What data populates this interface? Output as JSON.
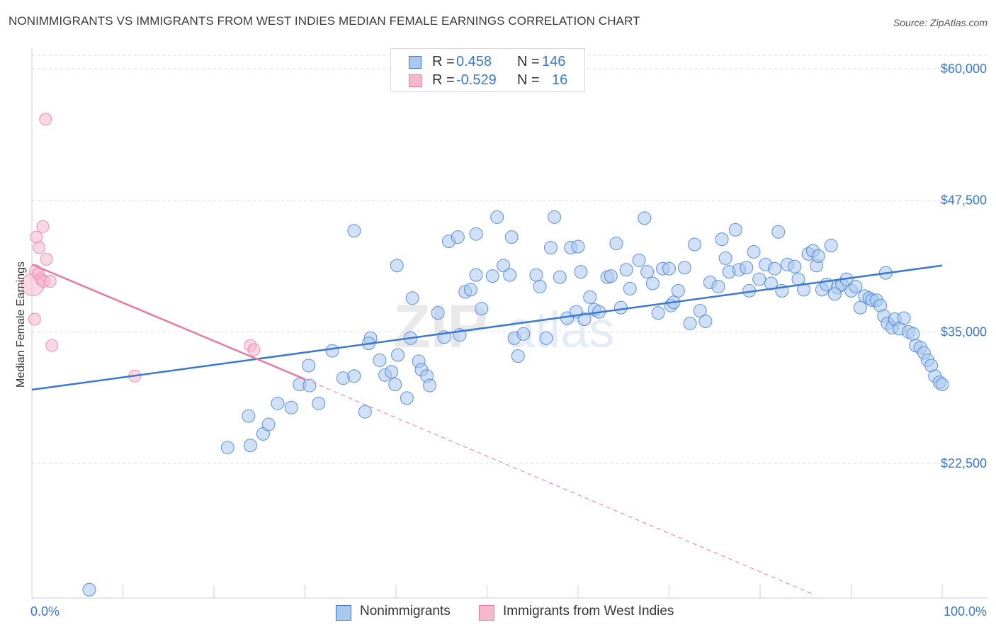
{
  "title": "NONIMMIGRANTS VS IMMIGRANTS FROM WEST INDIES MEDIAN FEMALE EARNINGS CORRELATION CHART",
  "source": "Source: ZipAtlas.com",
  "colors": {
    "blue": "#3b78d0",
    "blue_fill": "#a9c8f0",
    "pink": "#e87aa0",
    "pink_fill": "#f6b8cc",
    "grid": "#dddddd"
  },
  "legend_top": {
    "row1": {
      "r_label": "R =",
      "r_value": "0.458",
      "n_label": "N =",
      "n_value": "146"
    },
    "row2": {
      "r_label": "R =",
      "r_value": "-0.529",
      "n_label": "N =",
      "n_value": "16"
    }
  },
  "legend_bottom": {
    "item1": "Nonimmigrants",
    "item2": "Immigrants from West Indies"
  },
  "chart_data": {
    "type": "scatter",
    "title": "NONIMMIGRANTS VS IMMIGRANTS FROM WEST INDIES MEDIAN FEMALE EARNINGS CORRELATION CHART",
    "ylabel": "Median Female Earnings",
    "xlabel": "",
    "xlim": [
      0,
      100
    ],
    "ylim": [
      10000,
      62000
    ],
    "x_tick_labels": [
      "0.0%",
      "100.0%"
    ],
    "y_ticks": [
      22500,
      35000,
      47500,
      60000
    ],
    "y_tick_labels": [
      "$22,500",
      "$35,000",
      "$47,500",
      "$60,000"
    ],
    "grid": "horizontal dashed",
    "watermark": "ZIPatlas",
    "series": [
      {
        "name": "Nonimmigrants",
        "color": "#3b78d0",
        "trend": {
          "x": [
            0,
            100
          ],
          "y": [
            29500,
            41300
          ]
        },
        "points": [
          [
            6.3,
            10500
          ],
          [
            21.5,
            24000
          ],
          [
            24.0,
            24200
          ],
          [
            23.8,
            27000
          ],
          [
            25.4,
            25300
          ],
          [
            26.0,
            26200
          ],
          [
            27.0,
            28200
          ],
          [
            28.5,
            27800
          ],
          [
            29.4,
            30000
          ],
          [
            30.4,
            31800
          ],
          [
            30.5,
            29900
          ],
          [
            31.5,
            28200
          ],
          [
            33.0,
            33200
          ],
          [
            34.2,
            30600
          ],
          [
            35.4,
            30800
          ],
          [
            35.4,
            44600
          ],
          [
            36.6,
            27400
          ],
          [
            37.2,
            34400
          ],
          [
            37.0,
            33900
          ],
          [
            38.2,
            32300
          ],
          [
            38.8,
            30900
          ],
          [
            39.5,
            31200
          ],
          [
            39.9,
            30000
          ],
          [
            40.1,
            41300
          ],
          [
            40.2,
            32800
          ],
          [
            41.2,
            28700
          ],
          [
            41.6,
            34400
          ],
          [
            41.8,
            38200
          ],
          [
            42.5,
            32200
          ],
          [
            42.8,
            31400
          ],
          [
            43.4,
            30800
          ],
          [
            43.7,
            29900
          ],
          [
            44.6,
            36800
          ],
          [
            45.3,
            34500
          ],
          [
            45.8,
            43600
          ],
          [
            46.8,
            44000
          ],
          [
            47.0,
            34700
          ],
          [
            47.6,
            38800
          ],
          [
            48.2,
            39000
          ],
          [
            48.8,
            44300
          ],
          [
            48.8,
            40400
          ],
          [
            49.4,
            37200
          ],
          [
            50.6,
            40300
          ],
          [
            51.1,
            45900
          ],
          [
            51.8,
            41300
          ],
          [
            52.5,
            40400
          ],
          [
            52.7,
            44000
          ],
          [
            53.0,
            34400
          ],
          [
            53.4,
            32700
          ],
          [
            54.0,
            34800
          ],
          [
            55.4,
            40400
          ],
          [
            55.8,
            39300
          ],
          [
            56.5,
            34400
          ],
          [
            57.0,
            43000
          ],
          [
            57.4,
            45900
          ],
          [
            58.0,
            40200
          ],
          [
            58.8,
            36300
          ],
          [
            59.2,
            43000
          ],
          [
            59.8,
            36900
          ],
          [
            60.0,
            43100
          ],
          [
            60.3,
            40700
          ],
          [
            60.7,
            36200
          ],
          [
            61.3,
            38300
          ],
          [
            61.8,
            37100
          ],
          [
            62.3,
            36900
          ],
          [
            63.2,
            40200
          ],
          [
            63.6,
            40300
          ],
          [
            64.2,
            43400
          ],
          [
            64.7,
            37300
          ],
          [
            65.3,
            40900
          ],
          [
            65.7,
            39100
          ],
          [
            66.7,
            41800
          ],
          [
            67.3,
            45800
          ],
          [
            67.6,
            40700
          ],
          [
            68.2,
            39600
          ],
          [
            68.8,
            36800
          ],
          [
            69.3,
            41000
          ],
          [
            70.0,
            41000
          ],
          [
            70.2,
            37500
          ],
          [
            70.5,
            37800
          ],
          [
            71.0,
            38900
          ],
          [
            71.7,
            41100
          ],
          [
            72.3,
            35800
          ],
          [
            72.8,
            43300
          ],
          [
            73.4,
            37000
          ],
          [
            74.0,
            36000
          ],
          [
            74.5,
            39700
          ],
          [
            75.4,
            39300
          ],
          [
            75.8,
            43800
          ],
          [
            76.2,
            42000
          ],
          [
            76.6,
            40700
          ],
          [
            77.3,
            44700
          ],
          [
            77.7,
            40900
          ],
          [
            78.5,
            41100
          ],
          [
            78.8,
            38900
          ],
          [
            79.3,
            42600
          ],
          [
            79.9,
            40000
          ],
          [
            80.6,
            41400
          ],
          [
            81.2,
            39600
          ],
          [
            81.6,
            41000
          ],
          [
            82.0,
            44500
          ],
          [
            82.4,
            38900
          ],
          [
            83.0,
            41400
          ],
          [
            83.8,
            41200
          ],
          [
            84.2,
            40000
          ],
          [
            84.8,
            39000
          ],
          [
            85.3,
            42400
          ],
          [
            85.8,
            42700
          ],
          [
            86.2,
            41300
          ],
          [
            86.8,
            39000
          ],
          [
            87.3,
            39500
          ],
          [
            87.8,
            43200
          ],
          [
            88.5,
            39200
          ],
          [
            89.0,
            39500
          ],
          [
            89.5,
            40000
          ],
          [
            90.0,
            38900
          ],
          [
            90.5,
            39300
          ],
          [
            91.0,
            37300
          ],
          [
            91.5,
            38400
          ],
          [
            92.0,
            38200
          ],
          [
            92.3,
            38000
          ],
          [
            92.8,
            38000
          ],
          [
            93.2,
            37500
          ],
          [
            93.6,
            36500
          ],
          [
            94.0,
            35800
          ],
          [
            94.5,
            35400
          ],
          [
            94.8,
            36200
          ],
          [
            95.3,
            35300
          ],
          [
            95.8,
            36300
          ],
          [
            96.3,
            35000
          ],
          [
            96.8,
            34800
          ],
          [
            97.1,
            33700
          ],
          [
            97.6,
            33500
          ],
          [
            98.0,
            33000
          ],
          [
            98.4,
            32300
          ],
          [
            98.8,
            31800
          ],
          [
            99.2,
            30800
          ],
          [
            99.7,
            30200
          ],
          [
            100.0,
            30000
          ],
          [
            93.8,
            40600
          ],
          [
            88.2,
            38600
          ],
          [
            86.4,
            42200
          ]
        ]
      },
      {
        "name": "Immigrants from West Indies",
        "color": "#e87aa0",
        "trend": {
          "x": [
            0,
            30
          ],
          "y": [
            41400,
            30500
          ]
        },
        "trend_extension": {
          "x": [
            30,
            86
          ],
          "y": [
            30500,
            10000
          ]
        },
        "points": [
          [
            0.1,
            39500
          ],
          [
            0.3,
            36200
          ],
          [
            0.4,
            40800
          ],
          [
            0.5,
            44000
          ],
          [
            0.7,
            40500
          ],
          [
            0.8,
            43000
          ],
          [
            1.0,
            40000
          ],
          [
            1.2,
            45000
          ],
          [
            1.3,
            39800
          ],
          [
            1.5,
            55200
          ],
          [
            1.6,
            41900
          ],
          [
            2.0,
            39800
          ],
          [
            2.2,
            33700
          ],
          [
            11.3,
            30800
          ],
          [
            24.0,
            33700
          ],
          [
            24.4,
            33300
          ]
        ]
      }
    ]
  }
}
